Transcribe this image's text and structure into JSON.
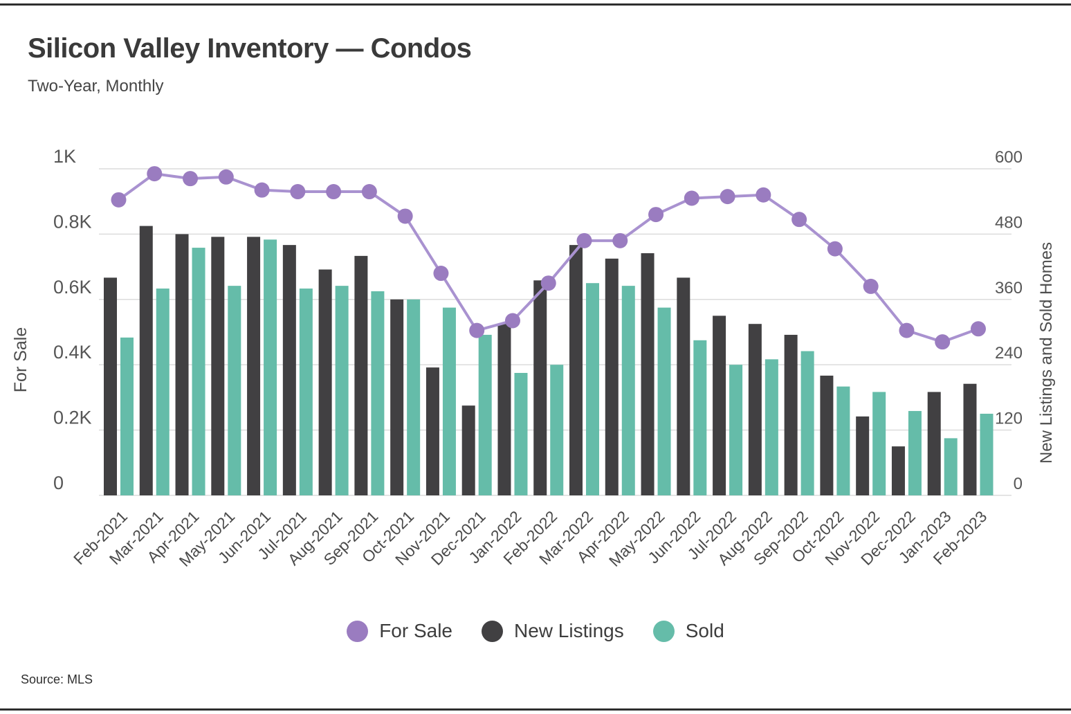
{
  "page": {
    "title": "Silicon Valley Inventory — Condos",
    "subtitle": "Two-Year, Monthly",
    "source": "Source: MLS"
  },
  "chart_data": {
    "type": "combo-bar-line",
    "categories": [
      "Feb-2021",
      "Mar-2021",
      "Apr-2021",
      "May-2021",
      "Jun-2021",
      "Jul-2021",
      "Aug-2021",
      "Sep-2021",
      "Oct-2021",
      "Nov-2021",
      "Dec-2021",
      "Jan-2022",
      "Feb-2022",
      "Mar-2022",
      "Apr-2022",
      "May-2022",
      "Jun-2022",
      "Jul-2022",
      "Aug-2022",
      "Sep-2022",
      "Oct-2022",
      "Nov-2022",
      "Dec-2022",
      "Jan-2023",
      "Feb-2023"
    ],
    "series": [
      {
        "name": "For Sale",
        "type": "line",
        "axis": "left",
        "color": "#9a7cc0",
        "line_color": "#a992d0",
        "values": [
          905,
          985,
          970,
          975,
          935,
          930,
          930,
          930,
          855,
          680,
          505,
          535,
          650,
          780,
          780,
          860,
          910,
          915,
          920,
          845,
          755,
          640,
          505,
          470,
          510
        ]
      },
      {
        "name": "New Listings",
        "type": "bar",
        "axis": "right",
        "color": "#414042",
        "values": [
          400,
          495,
          480,
          475,
          475,
          460,
          415,
          440,
          360,
          235,
          165,
          315,
          395,
          460,
          435,
          445,
          400,
          330,
          315,
          295,
          220,
          145,
          90,
          190,
          205
        ]
      },
      {
        "name": "Sold",
        "type": "bar",
        "axis": "right",
        "color": "#65bca9",
        "values": [
          290,
          380,
          455,
          385,
          470,
          380,
          385,
          375,
          360,
          345,
          295,
          225,
          240,
          390,
          385,
          345,
          285,
          240,
          250,
          265,
          200,
          190,
          155,
          105,
          150
        ]
      }
    ],
    "left_axis": {
      "title": "For Sale",
      "min": 0,
      "max": 1000,
      "tick_labels": [
        "1K",
        "0.8K",
        "0.6K",
        "0.4K",
        "0.2K",
        "0"
      ],
      "tick_values": [
        1000,
        800,
        600,
        400,
        200,
        0
      ]
    },
    "right_axis": {
      "title": "New Listings and Sold Homes",
      "min": 0,
      "max": 600,
      "tick_labels": [
        "600",
        "480",
        "360",
        "240",
        "120",
        "0"
      ],
      "tick_values": [
        600,
        480,
        360,
        240,
        120,
        0
      ]
    },
    "grid": true,
    "gridline_color": "#dcdcdc",
    "legend_position": "bottom"
  }
}
